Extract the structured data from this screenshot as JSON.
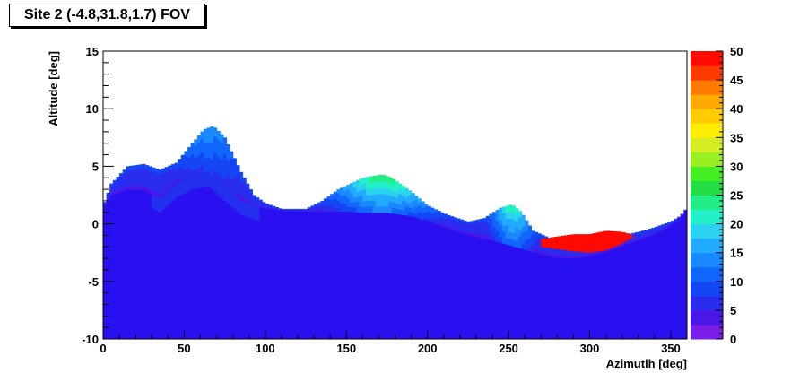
{
  "chart_data": {
    "type": "heatmap",
    "title": "Site 2 (-4.8,31.8,1.7) FOV",
    "xlabel": "Azimutih [deg]",
    "ylabel": "Altitude [deg]",
    "xlim": [
      0,
      360
    ],
    "ylim": [
      -10,
      15
    ],
    "x_ticks": [
      0,
      50,
      100,
      150,
      200,
      250,
      300,
      350
    ],
    "y_ticks": [
      -10,
      -5,
      0,
      5,
      10,
      15
    ],
    "z_range": [
      0,
      50
    ],
    "z_ticks": [
      0,
      5,
      10,
      15,
      20,
      25,
      30,
      35,
      40,
      45,
      50
    ],
    "grid": false,
    "colorbar_position": "right",
    "palette": [
      "#7b1fe8",
      "#4a17e8",
      "#2a2cf0",
      "#1446f5",
      "#1066ff",
      "#1a88ff",
      "#22aaff",
      "#2ad2f0",
      "#22f0c8",
      "#22ee88",
      "#22dd44",
      "#44ee22",
      "#99ee22",
      "#d4ee22",
      "#ffee00",
      "#ffcc00",
      "#ffaa00",
      "#ff7a00",
      "#ff3a00",
      "#ff0a00"
    ],
    "terrain_upper": [
      [
        0,
        1.5
      ],
      [
        5,
        3.5
      ],
      [
        15,
        5
      ],
      [
        25,
        5.2
      ],
      [
        35,
        4.7
      ],
      [
        45,
        5.3
      ],
      [
        55,
        7.0
      ],
      [
        62,
        8.2
      ],
      [
        68,
        8.5
      ],
      [
        75,
        7.5
      ],
      [
        85,
        4.5
      ],
      [
        93,
        2.5
      ],
      [
        100,
        1.8
      ],
      [
        110,
        1.3
      ],
      [
        125,
        1.3
      ],
      [
        135,
        2.0
      ],
      [
        145,
        3.0
      ],
      [
        160,
        4.0
      ],
      [
        172,
        4.3
      ],
      [
        178,
        4.0
      ],
      [
        190,
        2.8
      ],
      [
        200,
        1.6
      ],
      [
        212,
        0.8
      ],
      [
        225,
        0.2
      ],
      [
        235,
        0.5
      ],
      [
        245,
        1.4
      ],
      [
        252,
        1.7
      ],
      [
        258,
        1.0
      ],
      [
        265,
        -0.6
      ],
      [
        275,
        -1.2
      ],
      [
        285,
        -1.6
      ],
      [
        300,
        -1.6
      ],
      [
        310,
        -1.3
      ],
      [
        320,
        -1.0
      ],
      [
        330,
        -0.7
      ],
      [
        340,
        -0.3
      ],
      [
        350,
        0.2
      ],
      [
        356,
        0.7
      ],
      [
        360,
        1.4
      ]
    ],
    "terrain_blue": [
      [
        0,
        1.5
      ],
      [
        5,
        2.5
      ],
      [
        15,
        3.0
      ],
      [
        25,
        3.0
      ],
      [
        35,
        2.2
      ],
      [
        45,
        3.5
      ],
      [
        55,
        4.2
      ],
      [
        65,
        4.5
      ],
      [
        75,
        3.2
      ],
      [
        85,
        2.0
      ],
      [
        95,
        1.5
      ],
      [
        110,
        1.2
      ],
      [
        130,
        1.1
      ],
      [
        150,
        1.1
      ],
      [
        160,
        1.0
      ],
      [
        175,
        1.0
      ],
      [
        190,
        0.7
      ],
      [
        200,
        0.3
      ],
      [
        210,
        -0.2
      ],
      [
        220,
        -0.7
      ],
      [
        230,
        -1.1
      ],
      [
        240,
        -1.4
      ],
      [
        250,
        -1.8
      ],
      [
        260,
        -2.2
      ],
      [
        270,
        -2.6
      ],
      [
        280,
        -2.9
      ],
      [
        290,
        -3.0
      ],
      [
        300,
        -2.8
      ],
      [
        310,
        -2.4
      ],
      [
        320,
        -1.9
      ],
      [
        330,
        -1.4
      ],
      [
        340,
        -0.9
      ],
      [
        350,
        -0.1
      ],
      [
        356,
        0.6
      ],
      [
        360,
        1.4
      ]
    ],
    "shelter_upper": [
      [
        270,
        -1.3
      ],
      [
        280,
        -1.1
      ],
      [
        290,
        -0.9
      ],
      [
        300,
        -0.9
      ],
      [
        310,
        -0.6
      ],
      [
        320,
        -0.7
      ],
      [
        325,
        -0.9
      ]
    ],
    "shelter_lower": [
      [
        270,
        -2.0
      ],
      [
        280,
        -2.2
      ],
      [
        290,
        -2.4
      ],
      [
        300,
        -2.5
      ],
      [
        310,
        -2.3
      ],
      [
        320,
        -1.7
      ],
      [
        325,
        -1.3
      ]
    ]
  }
}
